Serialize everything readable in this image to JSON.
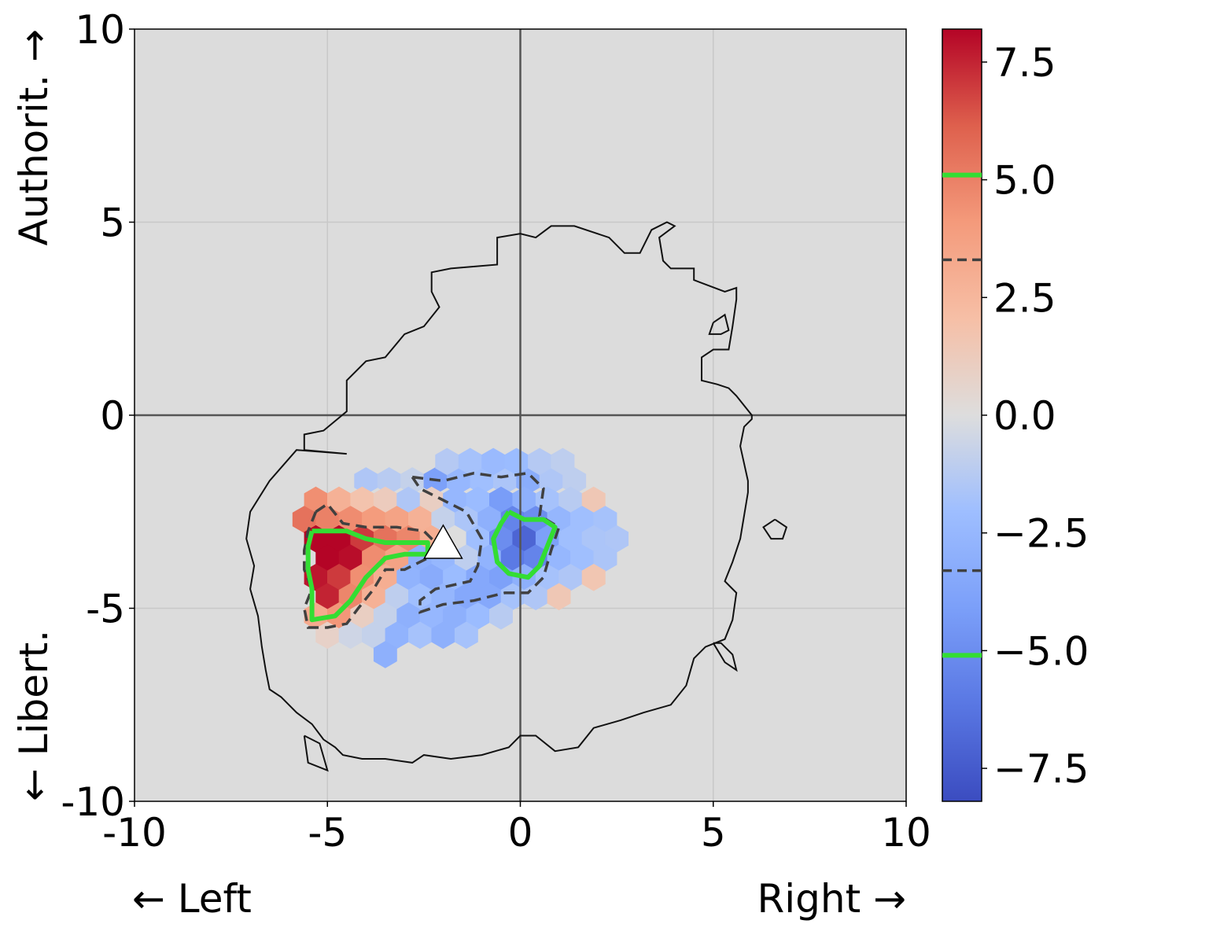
{
  "chart_data": {
    "type": "heatmap",
    "subtype": "hexbin political-compass density difference",
    "xlim": [
      -10,
      10
    ],
    "ylim": [
      -10,
      10
    ],
    "x_ticks": [
      "-10",
      "-5",
      "0",
      "5",
      "10"
    ],
    "y_ticks": [
      "10",
      "5",
      "0",
      "-5",
      "-10"
    ],
    "x_label_left": "← Left",
    "x_label_right": "Right →",
    "y_label_top": "Authorit. →",
    "y_label_bottom": "← Libert.",
    "grid": true,
    "background": "#dcdcdc",
    "colormap": "coolwarm",
    "color_range": [
      -8.2,
      8.2
    ],
    "colorbar_ticks": [
      "7.5",
      "5.0",
      "2.5",
      "0.0",
      "−2.5",
      "−5.0",
      "−7.5"
    ],
    "colorbar_tick_values": [
      7.5,
      5.0,
      2.5,
      0.0,
      -2.5,
      -5.0,
      -7.5
    ],
    "contour_levels": [
      {
        "value": 5.1,
        "style": "solid",
        "color": "#33dd33"
      },
      {
        "value": 3.3,
        "style": "dashed",
        "color": "#404040"
      },
      {
        "value": -3.3,
        "style": "dashed",
        "color": "#404040"
      },
      {
        "value": -5.1,
        "style": "solid",
        "color": "#33dd33"
      }
    ],
    "marker": {
      "shape": "triangle",
      "x": -2.0,
      "y": -3.4,
      "color": "#ffffff"
    },
    "hex_cells": [
      {
        "x": -4.0,
        "y": -1.7,
        "v": -1.5
      },
      {
        "x": -3.4,
        "y": -1.7,
        "v": -1.2
      },
      {
        "x": -2.8,
        "y": -1.7,
        "v": -0.8
      },
      {
        "x": -2.2,
        "y": -1.7,
        "v": -4.0
      },
      {
        "x": -1.6,
        "y": -1.7,
        "v": -2.5
      },
      {
        "x": -1.0,
        "y": -1.7,
        "v": -2.0
      },
      {
        "x": -0.4,
        "y": -1.7,
        "v": -1.6
      },
      {
        "x": 0.2,
        "y": -1.7,
        "v": -3.2
      },
      {
        "x": 0.8,
        "y": -1.7,
        "v": -1.5
      },
      {
        "x": 1.4,
        "y": -1.7,
        "v": -1.0
      },
      {
        "x": -1.9,
        "y": -1.2,
        "v": -1.3
      },
      {
        "x": -1.3,
        "y": -1.2,
        "v": -1.8
      },
      {
        "x": -0.7,
        "y": -1.2,
        "v": -2.3
      },
      {
        "x": -0.1,
        "y": -1.2,
        "v": -2.2
      },
      {
        "x": 0.5,
        "y": -1.2,
        "v": -1.3
      },
      {
        "x": 1.1,
        "y": -1.2,
        "v": -1.0
      },
      {
        "x": -5.3,
        "y": -2.2,
        "v": 4.5
      },
      {
        "x": -4.7,
        "y": -2.2,
        "v": 2.8
      },
      {
        "x": -4.1,
        "y": -2.2,
        "v": 1.8
      },
      {
        "x": -3.5,
        "y": -2.2,
        "v": 1.2
      },
      {
        "x": -2.9,
        "y": -2.2,
        "v": -1.5
      },
      {
        "x": -2.3,
        "y": -2.2,
        "v": 1.0
      },
      {
        "x": -1.7,
        "y": -2.2,
        "v": -2.5
      },
      {
        "x": -1.1,
        "y": -2.2,
        "v": -2.2
      },
      {
        "x": -0.5,
        "y": -2.2,
        "v": -4.2
      },
      {
        "x": 0.1,
        "y": -2.2,
        "v": -3.0
      },
      {
        "x": 0.7,
        "y": -2.2,
        "v": -1.8
      },
      {
        "x": 1.3,
        "y": -2.2,
        "v": -1.2
      },
      {
        "x": 1.9,
        "y": -2.2,
        "v": 1.5
      },
      {
        "x": -5.6,
        "y": -2.7,
        "v": 5.5
      },
      {
        "x": -5.0,
        "y": -2.7,
        "v": 5.0
      },
      {
        "x": -4.4,
        "y": -2.7,
        "v": 4.6
      },
      {
        "x": -3.8,
        "y": -2.7,
        "v": 4.0
      },
      {
        "x": -3.2,
        "y": -2.7,
        "v": 3.6
      },
      {
        "x": -2.6,
        "y": -2.7,
        "v": 2.8
      },
      {
        "x": -2.0,
        "y": -2.7,
        "v": -0.8
      },
      {
        "x": -1.4,
        "y": -2.7,
        "v": -1.6
      },
      {
        "x": -0.8,
        "y": -2.7,
        "v": -3.0
      },
      {
        "x": -0.2,
        "y": -2.7,
        "v": -5.5
      },
      {
        "x": 0.4,
        "y": -2.7,
        "v": -5.0
      },
      {
        "x": 1.0,
        "y": -2.7,
        "v": -2.6
      },
      {
        "x": 1.6,
        "y": -2.7,
        "v": -2.0
      },
      {
        "x": 2.2,
        "y": -2.7,
        "v": -1.8
      },
      {
        "x": -5.3,
        "y": -3.2,
        "v": 8.2
      },
      {
        "x": -4.7,
        "y": -3.2,
        "v": 8.2
      },
      {
        "x": -4.1,
        "y": -3.2,
        "v": 7.0
      },
      {
        "x": -3.5,
        "y": -3.2,
        "v": 5.5
      },
      {
        "x": -2.9,
        "y": -3.2,
        "v": 4.8
      },
      {
        "x": -2.3,
        "y": -3.2,
        "v": 3.0
      },
      {
        "x": -1.7,
        "y": -3.2,
        "v": 0.0
      },
      {
        "x": -1.1,
        "y": -3.2,
        "v": -2.0
      },
      {
        "x": -0.5,
        "y": -3.2,
        "v": -5.0
      },
      {
        "x": 0.1,
        "y": -3.2,
        "v": -7.0
      },
      {
        "x": 0.7,
        "y": -3.2,
        "v": -4.0
      },
      {
        "x": 1.3,
        "y": -3.2,
        "v": -2.0
      },
      {
        "x": 1.9,
        "y": -3.2,
        "v": -1.6
      },
      {
        "x": 2.5,
        "y": -3.2,
        "v": -1.5
      },
      {
        "x": -5.0,
        "y": -3.7,
        "v": 8.2
      },
      {
        "x": -4.4,
        "y": -3.7,
        "v": 8.0
      },
      {
        "x": -3.8,
        "y": -3.7,
        "v": 4.6
      },
      {
        "x": -3.2,
        "y": -3.7,
        "v": 3.6
      },
      {
        "x": -2.6,
        "y": -3.7,
        "v": -3.0
      },
      {
        "x": -2.0,
        "y": -3.7,
        "v": -2.5
      },
      {
        "x": -1.4,
        "y": -3.7,
        "v": -1.0
      },
      {
        "x": -0.8,
        "y": -3.7,
        "v": -2.8
      },
      {
        "x": -0.2,
        "y": -3.7,
        "v": -6.0
      },
      {
        "x": 0.4,
        "y": -3.7,
        "v": -5.5
      },
      {
        "x": 1.0,
        "y": -3.7,
        "v": -2.5
      },
      {
        "x": 1.6,
        "y": -3.7,
        "v": -2.0
      },
      {
        "x": 2.2,
        "y": -3.7,
        "v": -1.6
      },
      {
        "x": -5.3,
        "y": -4.2,
        "v": 7.8
      },
      {
        "x": -4.7,
        "y": -4.2,
        "v": 7.0
      },
      {
        "x": -4.1,
        "y": -4.2,
        "v": 4.5
      },
      {
        "x": -3.5,
        "y": -4.2,
        "v": 3.0
      },
      {
        "x": -2.9,
        "y": -4.2,
        "v": -2.8
      },
      {
        "x": -2.3,
        "y": -4.2,
        "v": -3.3
      },
      {
        "x": -1.7,
        "y": -4.2,
        "v": -2.2
      },
      {
        "x": -1.1,
        "y": -4.2,
        "v": -3.5
      },
      {
        "x": -0.5,
        "y": -4.2,
        "v": -4.0
      },
      {
        "x": 0.1,
        "y": -4.2,
        "v": -3.0
      },
      {
        "x": 0.7,
        "y": -4.2,
        "v": -1.8
      },
      {
        "x": 1.3,
        "y": -4.2,
        "v": -1.5
      },
      {
        "x": 1.9,
        "y": -4.2,
        "v": 1.6
      },
      {
        "x": -5.0,
        "y": -4.7,
        "v": 7.5
      },
      {
        "x": -4.4,
        "y": -4.7,
        "v": 4.8
      },
      {
        "x": -3.8,
        "y": -4.7,
        "v": 2.8
      },
      {
        "x": -3.2,
        "y": -4.7,
        "v": -1.0
      },
      {
        "x": -2.6,
        "y": -4.7,
        "v": -2.0
      },
      {
        "x": -2.0,
        "y": -4.7,
        "v": -2.6
      },
      {
        "x": -1.4,
        "y": -4.7,
        "v": -3.5
      },
      {
        "x": -0.8,
        "y": -4.7,
        "v": -3.5
      },
      {
        "x": -0.2,
        "y": -4.7,
        "v": -1.8
      },
      {
        "x": 0.4,
        "y": -4.7,
        "v": -1.5
      },
      {
        "x": 1.0,
        "y": -4.7,
        "v": 1.5
      },
      {
        "x": -5.3,
        "y": -5.2,
        "v": 3.2
      },
      {
        "x": -4.7,
        "y": -5.2,
        "v": 4.2
      },
      {
        "x": -4.1,
        "y": -5.2,
        "v": 1.0
      },
      {
        "x": -3.5,
        "y": -5.2,
        "v": -0.8
      },
      {
        "x": -2.9,
        "y": -5.2,
        "v": -3.0
      },
      {
        "x": -2.3,
        "y": -5.2,
        "v": -2.5
      },
      {
        "x": -1.7,
        "y": -5.2,
        "v": -3.0
      },
      {
        "x": -1.1,
        "y": -5.2,
        "v": -2.2
      },
      {
        "x": -0.5,
        "y": -5.2,
        "v": -1.2
      },
      {
        "x": -5.0,
        "y": -5.7,
        "v": 0.8
      },
      {
        "x": -4.4,
        "y": -5.7,
        "v": -0.5
      },
      {
        "x": -3.8,
        "y": -5.7,
        "v": -0.8
      },
      {
        "x": -3.2,
        "y": -5.7,
        "v": -2.8
      },
      {
        "x": -2.6,
        "y": -5.7,
        "v": -1.8
      },
      {
        "x": -2.0,
        "y": -5.7,
        "v": -3.0
      },
      {
        "x": -1.4,
        "y": -5.7,
        "v": -1.8
      },
      {
        "x": -3.5,
        "y": -6.2,
        "v": -3.0
      }
    ],
    "outer_contour": [
      [
        -4.5,
        -1.0
      ],
      [
        -5.8,
        -0.9
      ],
      [
        -6.5,
        -1.7
      ],
      [
        -7.0,
        -2.5
      ],
      [
        -7.1,
        -3.2
      ],
      [
        -6.9,
        -3.9
      ],
      [
        -7.0,
        -4.5
      ],
      [
        -6.8,
        -5.2
      ],
      [
        -6.7,
        -6.0
      ],
      [
        -6.6,
        -6.6
      ],
      [
        -6.5,
        -7.1
      ],
      [
        -6.2,
        -7.3
      ],
      [
        -5.8,
        -7.7
      ],
      [
        -5.4,
        -8.0
      ],
      [
        -5.1,
        -8.4
      ],
      [
        -4.8,
        -8.6
      ],
      [
        -4.6,
        -8.8
      ],
      [
        -4.1,
        -8.9
      ],
      [
        -3.5,
        -8.9
      ],
      [
        -2.8,
        -9.0
      ],
      [
        -2.5,
        -8.8
      ],
      [
        -1.8,
        -8.9
      ],
      [
        -1.0,
        -8.8
      ],
      [
        -0.3,
        -8.6
      ],
      [
        0.0,
        -8.3
      ],
      [
        0.4,
        -8.3
      ],
      [
        0.9,
        -8.7
      ],
      [
        1.5,
        -8.6
      ],
      [
        1.9,
        -8.1
      ],
      [
        2.6,
        -7.9
      ],
      [
        3.2,
        -7.7
      ],
      [
        3.9,
        -7.5
      ],
      [
        4.3,
        -7.0
      ],
      [
        4.5,
        -6.3
      ],
      [
        4.8,
        -6.0
      ],
      [
        5.3,
        -5.8
      ],
      [
        5.5,
        -5.3
      ],
      [
        5.6,
        -4.6
      ],
      [
        5.3,
        -4.3
      ],
      [
        5.5,
        -3.8
      ],
      [
        5.7,
        -3.2
      ],
      [
        5.8,
        -2.6
      ],
      [
        5.9,
        -2.0
      ],
      [
        5.9,
        -1.7
      ],
      [
        5.7,
        -0.8
      ],
      [
        5.8,
        -0.3
      ],
      [
        6.0,
        -0.1
      ],
      [
        6.0,
        0.0
      ],
      [
        5.6,
        0.5
      ],
      [
        5.4,
        0.7
      ],
      [
        5.1,
        0.8
      ],
      [
        4.7,
        0.9
      ],
      [
        4.7,
        1.5
      ],
      [
        5.0,
        1.7
      ],
      [
        5.4,
        1.7
      ],
      [
        5.5,
        2.3
      ],
      [
        5.6,
        3.0
      ],
      [
        5.6,
        3.3
      ],
      [
        5.3,
        3.2
      ],
      [
        4.5,
        3.5
      ],
      [
        4.5,
        3.8
      ],
      [
        3.9,
        3.8
      ],
      [
        3.7,
        4.0
      ],
      [
        3.6,
        4.6
      ],
      [
        4.0,
        4.9
      ],
      [
        3.8,
        5.0
      ],
      [
        3.4,
        4.8
      ],
      [
        3.1,
        4.2
      ],
      [
        2.7,
        4.2
      ],
      [
        2.3,
        4.6
      ],
      [
        1.4,
        4.9
      ],
      [
        0.8,
        4.9
      ],
      [
        0.4,
        4.6
      ],
      [
        0.0,
        4.7
      ],
      [
        -0.6,
        4.6
      ],
      [
        -0.6,
        3.9
      ],
      [
        -1.8,
        3.8
      ],
      [
        -2.3,
        3.7
      ],
      [
        -2.3,
        3.2
      ],
      [
        -2.1,
        2.8
      ],
      [
        -2.5,
        2.3
      ],
      [
        -3.0,
        2.1
      ],
      [
        -3.5,
        1.5
      ],
      [
        -4.0,
        1.4
      ],
      [
        -4.5,
        0.9
      ],
      [
        -4.5,
        0.5
      ],
      [
        -4.5,
        0.1
      ],
      [
        -5.1,
        -0.4
      ],
      [
        -5.6,
        -0.5
      ],
      [
        -5.6,
        -0.9
      ],
      [
        -4.5,
        -1.0
      ]
    ],
    "outer_islands": [
      [
        [
          5.0,
          2.4
        ],
        [
          4.9,
          2.1
        ],
        [
          5.2,
          2.1
        ],
        [
          5.4,
          2.2
        ],
        [
          5.3,
          2.6
        ],
        [
          5.0,
          2.4
        ]
      ],
      [
        [
          6.6,
          -2.7
        ],
        [
          6.3,
          -2.9
        ],
        [
          6.5,
          -3.2
        ],
        [
          6.8,
          -3.2
        ],
        [
          6.9,
          -2.9
        ],
        [
          6.6,
          -2.7
        ]
      ],
      [
        [
          5.0,
          -5.9
        ],
        [
          5.3,
          -6.4
        ],
        [
          5.6,
          -6.6
        ],
        [
          5.5,
          -6.2
        ],
        [
          5.2,
          -5.9
        ],
        [
          5.0,
          -5.9
        ]
      ],
      [
        [
          -5.6,
          -8.3
        ],
        [
          -5.2,
          -8.5
        ],
        [
          -5.0,
          -9.2
        ],
        [
          -5.5,
          -9.0
        ],
        [
          -5.6,
          -8.3
        ]
      ]
    ],
    "contour_pos_dashed": [
      [
        -5.3,
        -2.5
      ],
      [
        -5.0,
        -2.3
      ],
      [
        -4.6,
        -2.8
      ],
      [
        -4.0,
        -2.9
      ],
      [
        -3.2,
        -2.9
      ],
      [
        -2.5,
        -3.0
      ],
      [
        -2.2,
        -3.3
      ],
      [
        -2.4,
        -3.7
      ],
      [
        -3.0,
        -4.0
      ],
      [
        -3.5,
        -4.0
      ],
      [
        -3.8,
        -4.5
      ],
      [
        -4.2,
        -5.0
      ],
      [
        -4.5,
        -5.4
      ],
      [
        -5.0,
        -5.5
      ],
      [
        -5.5,
        -5.5
      ],
      [
        -5.6,
        -5.0
      ],
      [
        -5.4,
        -4.5
      ],
      [
        -5.6,
        -4.0
      ],
      [
        -5.6,
        -3.5
      ],
      [
        -5.5,
        -3.0
      ],
      [
        -5.3,
        -2.5
      ]
    ],
    "contour_pos_solid": [
      [
        -5.4,
        -3.0
      ],
      [
        -5.0,
        -3.0
      ],
      [
        -4.5,
        -3.0
      ],
      [
        -4.0,
        -3.2
      ],
      [
        -3.5,
        -3.3
      ],
      [
        -3.0,
        -3.3
      ],
      [
        -2.4,
        -3.3
      ],
      [
        -2.4,
        -3.6
      ],
      [
        -3.0,
        -3.6
      ],
      [
        -3.5,
        -3.7
      ],
      [
        -4.0,
        -4.2
      ],
      [
        -4.4,
        -4.8
      ],
      [
        -4.8,
        -5.2
      ],
      [
        -5.4,
        -5.3
      ],
      [
        -5.4,
        -5.0
      ],
      [
        -5.4,
        -4.5
      ],
      [
        -5.5,
        -4.0
      ],
      [
        -5.5,
        -3.4
      ],
      [
        -5.4,
        -3.0
      ]
    ],
    "contour_neg_dashed": [
      [
        -2.8,
        -1.6
      ],
      [
        -2.0,
        -1.7
      ],
      [
        -1.2,
        -1.5
      ],
      [
        -0.5,
        -1.6
      ],
      [
        0.2,
        -1.5
      ],
      [
        0.6,
        -1.9
      ],
      [
        0.5,
        -2.6
      ],
      [
        1.0,
        -2.9
      ],
      [
        0.8,
        -3.5
      ],
      [
        0.6,
        -4.2
      ],
      [
        0.2,
        -4.6
      ],
      [
        -0.4,
        -4.6
      ],
      [
        -1.2,
        -4.8
      ],
      [
        -2.0,
        -4.9
      ],
      [
        -2.6,
        -5.1
      ],
      [
        -2.6,
        -4.8
      ],
      [
        -2.2,
        -4.5
      ],
      [
        -1.3,
        -4.3
      ],
      [
        -1.1,
        -3.9
      ],
      [
        -1.0,
        -3.2
      ],
      [
        -1.4,
        -2.5
      ],
      [
        -2.0,
        -2.2
      ],
      [
        -2.6,
        -1.9
      ],
      [
        -2.8,
        -1.6
      ]
    ],
    "contour_neg_solid": [
      [
        -0.3,
        -2.5
      ],
      [
        0.1,
        -2.7
      ],
      [
        0.6,
        -2.7
      ],
      [
        0.9,
        -2.9
      ],
      [
        0.7,
        -3.4
      ],
      [
        0.5,
        -3.9
      ],
      [
        0.2,
        -4.2
      ],
      [
        -0.3,
        -4.1
      ],
      [
        -0.6,
        -3.8
      ],
      [
        -0.7,
        -3.2
      ],
      [
        -0.5,
        -2.8
      ],
      [
        -0.3,
        -2.5
      ]
    ]
  }
}
